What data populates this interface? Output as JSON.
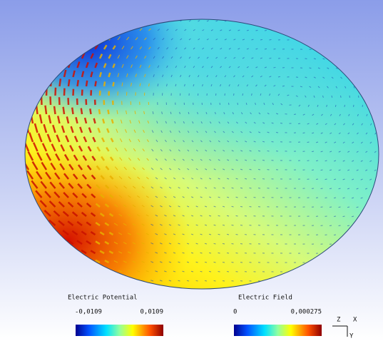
{
  "legends": [
    {
      "title": "Electric Potential",
      "min_label": "-0,0109",
      "max_label": "0,0109"
    },
    {
      "title": "Electric Field",
      "min_label": "0",
      "max_label": "0,000275"
    }
  ],
  "axes_triad": {
    "z": "Z",
    "x": "X",
    "y": "Y"
  }
}
